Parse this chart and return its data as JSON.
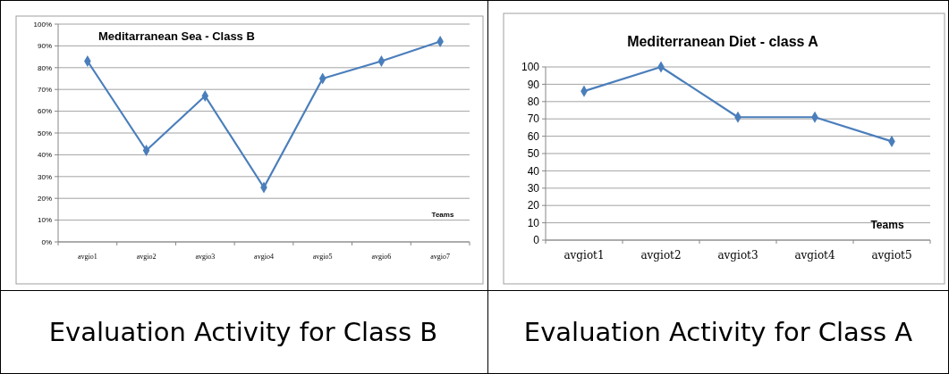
{
  "chart_data": [
    {
      "type": "line",
      "title": "Meditarranean Sea - Class B",
      "xlabel": "Teams",
      "categories": [
        "avgio1",
        "avgio2",
        "avgio3",
        "avgio4",
        "avgio5",
        "avgio6",
        "avgio7"
      ],
      "series": [
        {
          "color": "#4a7ebb",
          "values": [
            83,
            42,
            67,
            25,
            75,
            83,
            92
          ]
        }
      ],
      "ylim": [
        0,
        100
      ],
      "yticks": [
        {
          "value": 0,
          "label": "0%"
        },
        {
          "value": 10,
          "label": "10%"
        },
        {
          "value": 20,
          "label": "20%"
        },
        {
          "value": 30,
          "label": "30%"
        },
        {
          "value": 40,
          "label": "40%"
        },
        {
          "value": 50,
          "label": "50%"
        },
        {
          "value": 60,
          "label": "60%"
        },
        {
          "value": 70,
          "label": "70%"
        },
        {
          "value": 80,
          "label": "80%"
        },
        {
          "value": 90,
          "label": "90%"
        },
        {
          "value": 100,
          "label": "100%"
        }
      ],
      "grid": "y",
      "marker": "diamond",
      "line_style": "solid",
      "annotations": [
        "Evaluation Activity for Class B"
      ]
    },
    {
      "type": "line",
      "title": "Mediterranean Diet - class A",
      "xlabel": "Teams",
      "categories": [
        "avgiot1",
        "avgiot2",
        "avgiot3",
        "avgiot4",
        "avgiot5"
      ],
      "series": [
        {
          "color": "#4a7ebb",
          "values": [
            86,
            100,
            71,
            71,
            57
          ]
        }
      ],
      "ylim": [
        0,
        100
      ],
      "yticks": [
        0,
        10,
        20,
        30,
        40,
        50,
        60,
        70,
        80,
        90,
        100
      ],
      "grid": "y",
      "marker": "diamond",
      "line_style": "solid",
      "annotations": [
        "Evaluation Activity for Class A"
      ]
    }
  ]
}
